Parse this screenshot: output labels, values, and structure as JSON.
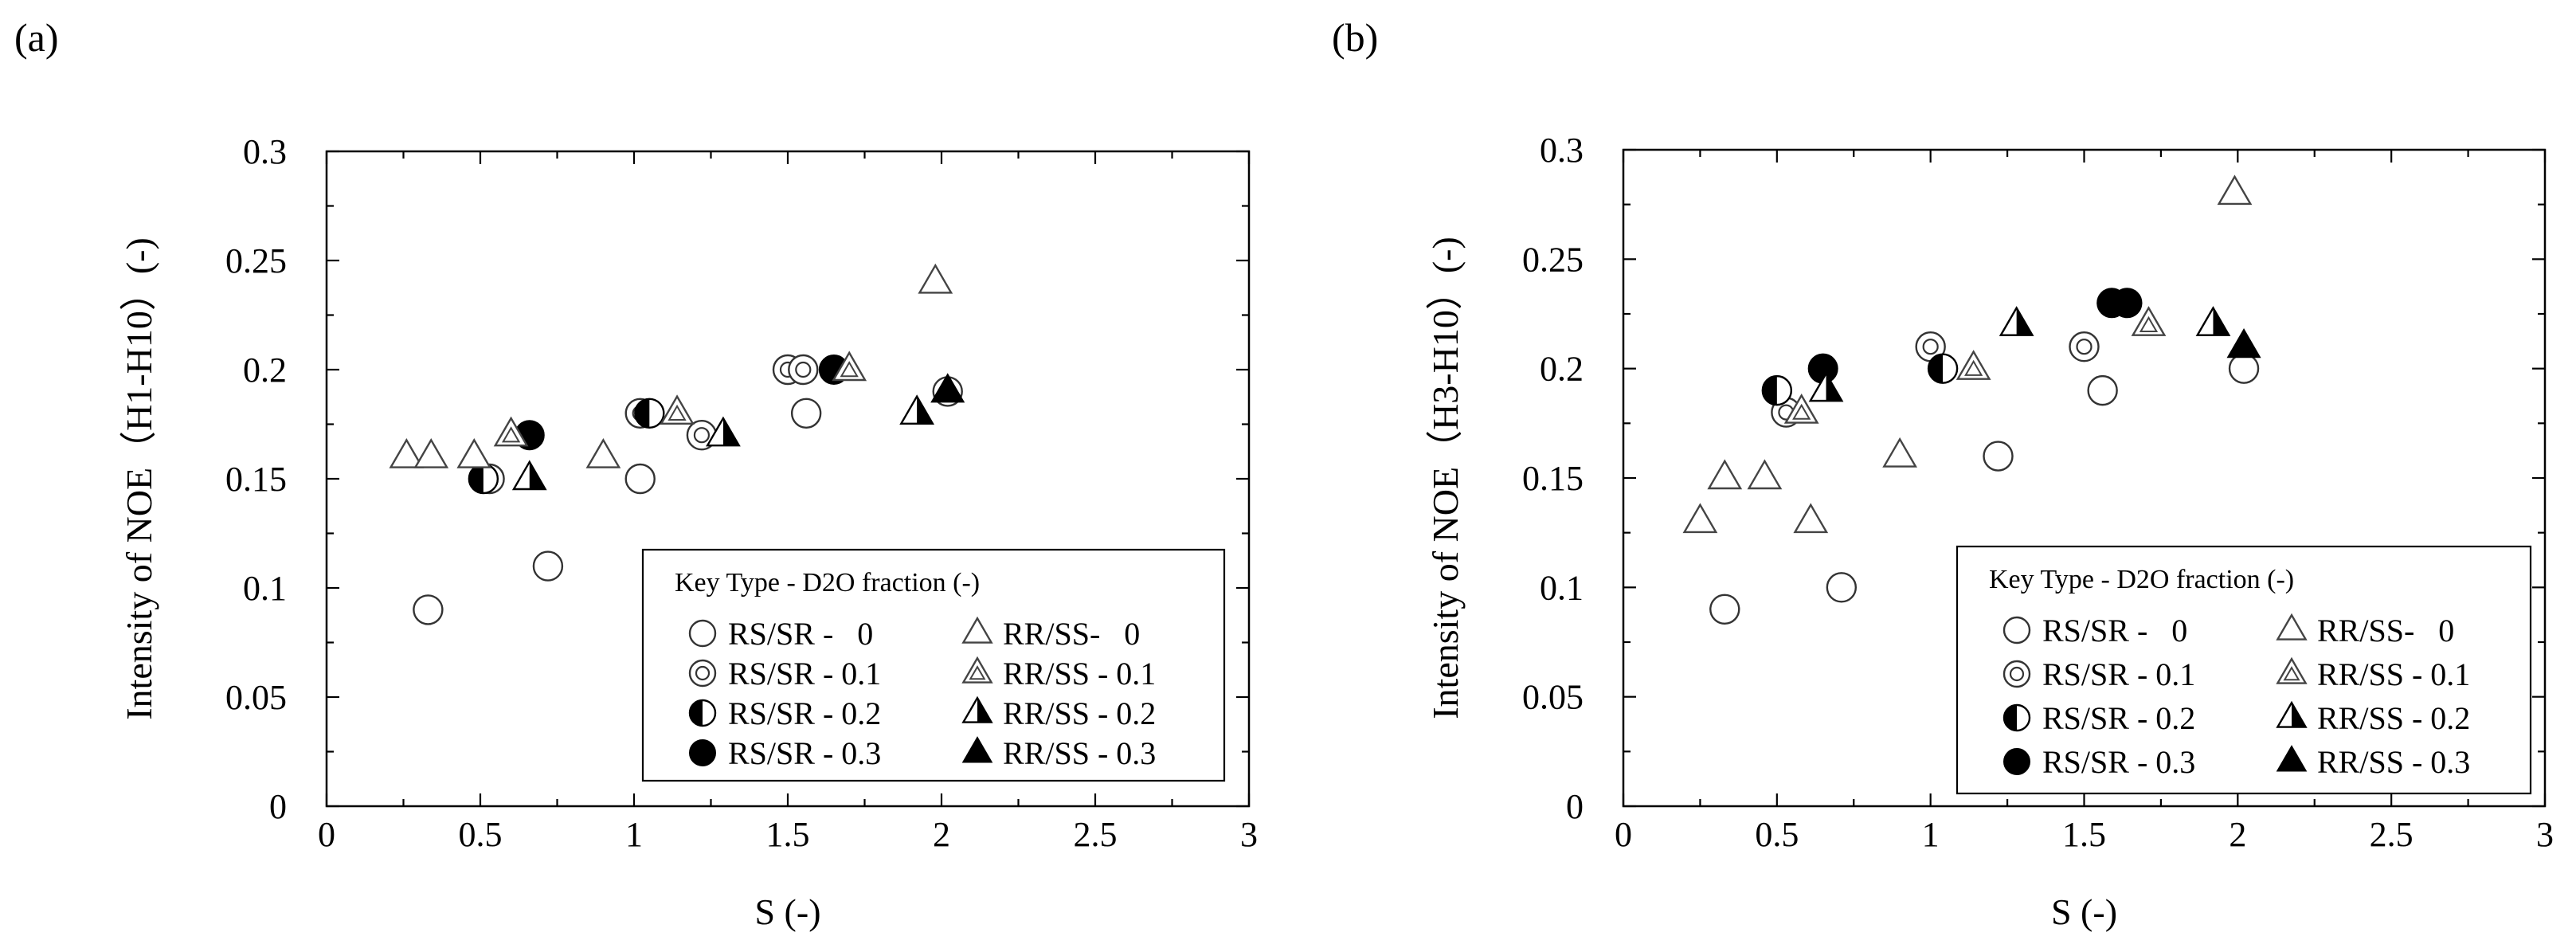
{
  "chart_data": [
    {
      "type": "scatter",
      "panel_label": "(a)",
      "xlabel": "S (-)",
      "ylabel": "Intensity of NOE（H1-H10）(-)",
      "xlim": [
        0,
        3
      ],
      "ylim": [
        0,
        0.3
      ],
      "x_ticks": [
        0,
        0.5,
        1,
        1.5,
        2,
        2.5,
        3
      ],
      "x_tick_labels": [
        "0",
        "0.5",
        "1",
        "1.5",
        "2",
        "2.5",
        "3"
      ],
      "y_ticks": [
        0,
        0.05,
        0.1,
        0.15,
        0.2,
        0.25,
        0.3
      ],
      "y_tick_labels": [
        "0",
        "0.05",
        "0.1",
        "0.15",
        "0.2",
        "0.25",
        "0.3"
      ],
      "grid": false,
      "legend_placement": "bottom-right",
      "legend_title": "Key   Type - D2O fraction (-)",
      "series": [
        {
          "name": "RS/SR -   0",
          "marker": "circle-open",
          "points": [
            [
              0.33,
              0.09
            ],
            [
              0.72,
              0.11
            ],
            [
              1.02,
              0.15
            ],
            [
              1.56,
              0.18
            ],
            [
              2.02,
              0.19
            ]
          ]
        },
        {
          "name": "RS/SR - 0.1",
          "marker": "circle-double",
          "points": [
            [
              0.53,
              0.15
            ],
            [
              1.02,
              0.18
            ],
            [
              1.22,
              0.17
            ],
            [
              1.5,
              0.2
            ],
            [
              1.55,
              0.2
            ]
          ]
        },
        {
          "name": "RS/SR - 0.2",
          "marker": "circle-half",
          "points": [
            [
              0.51,
              0.15
            ],
            [
              1.05,
              0.18
            ]
          ]
        },
        {
          "name": "RS/SR - 0.3",
          "marker": "circle-filled",
          "points": [
            [
              0.66,
              0.17
            ],
            [
              1.65,
              0.2
            ]
          ]
        },
        {
          "name": "RR/SS-   0",
          "marker": "triangle-open",
          "points": [
            [
              0.26,
              0.16
            ],
            [
              0.34,
              0.16
            ],
            [
              0.48,
              0.16
            ],
            [
              0.9,
              0.16
            ],
            [
              1.98,
              0.24
            ]
          ]
        },
        {
          "name": "RR/SS - 0.1",
          "marker": "triangle-double",
          "points": [
            [
              0.6,
              0.17
            ],
            [
              1.14,
              0.18
            ],
            [
              1.7,
              0.2
            ]
          ]
        },
        {
          "name": "RR/SS - 0.2",
          "marker": "triangle-half",
          "points": [
            [
              0.66,
              0.15
            ],
            [
              1.29,
              0.17
            ],
            [
              1.92,
              0.18
            ]
          ]
        },
        {
          "name": "RR/SS - 0.3",
          "marker": "triangle-filled",
          "points": [
            [
              2.02,
              0.19
            ]
          ]
        }
      ]
    },
    {
      "type": "scatter",
      "panel_label": "(b)",
      "xlabel": "S (-)",
      "ylabel": "Intensity of NOE（H3-H10）(-)",
      "xlim": [
        0,
        3
      ],
      "ylim": [
        0,
        0.3
      ],
      "x_ticks": [
        0,
        0.5,
        1,
        1.5,
        2,
        2.5,
        3
      ],
      "x_tick_labels": [
        "0",
        "0.5",
        "1",
        "1.5",
        "2",
        "2.5",
        "3"
      ],
      "y_ticks": [
        0,
        0.05,
        0.1,
        0.15,
        0.2,
        0.25,
        0.3
      ],
      "y_tick_labels": [
        "0",
        "0.05",
        "0.1",
        "0.15",
        "0.2",
        "0.25",
        "0.3"
      ],
      "grid": false,
      "legend_placement": "bottom-right",
      "legend_title": "Key   Type - D2O fraction (-)",
      "series": [
        {
          "name": "RS/SR -   0",
          "marker": "circle-open",
          "points": [
            [
              0.33,
              0.09
            ],
            [
              0.71,
              0.1
            ],
            [
              1.22,
              0.16
            ],
            [
              1.56,
              0.19
            ],
            [
              2.02,
              0.2
            ]
          ]
        },
        {
          "name": "RS/SR - 0.1",
          "marker": "circle-double",
          "points": [
            [
              0.53,
              0.18
            ],
            [
              1.0,
              0.21
            ],
            [
              1.5,
              0.21
            ]
          ]
        },
        {
          "name": "RS/SR - 0.2",
          "marker": "circle-half",
          "points": [
            [
              0.5,
              0.19
            ],
            [
              1.04,
              0.2
            ]
          ]
        },
        {
          "name": "RS/SR - 0.3",
          "marker": "circle-filled",
          "points": [
            [
              0.65,
              0.2
            ],
            [
              1.59,
              0.23
            ],
            [
              1.64,
              0.23
            ]
          ]
        },
        {
          "name": "RR/SS-   0",
          "marker": "triangle-open",
          "points": [
            [
              0.25,
              0.13
            ],
            [
              0.33,
              0.15
            ],
            [
              0.46,
              0.15
            ],
            [
              0.61,
              0.13
            ],
            [
              0.9,
              0.16
            ],
            [
              1.99,
              0.28
            ]
          ]
        },
        {
          "name": "RR/SS - 0.1",
          "marker": "triangle-double",
          "points": [
            [
              0.58,
              0.18
            ],
            [
              1.14,
              0.2
            ],
            [
              1.71,
              0.22
            ]
          ]
        },
        {
          "name": "RR/SS - 0.2",
          "marker": "triangle-half",
          "points": [
            [
              0.66,
              0.19
            ],
            [
              1.28,
              0.22
            ],
            [
              1.92,
              0.22
            ]
          ]
        },
        {
          "name": "RR/SS - 0.3",
          "marker": "triangle-filled",
          "points": [
            [
              2.02,
              0.21
            ]
          ]
        }
      ]
    }
  ]
}
